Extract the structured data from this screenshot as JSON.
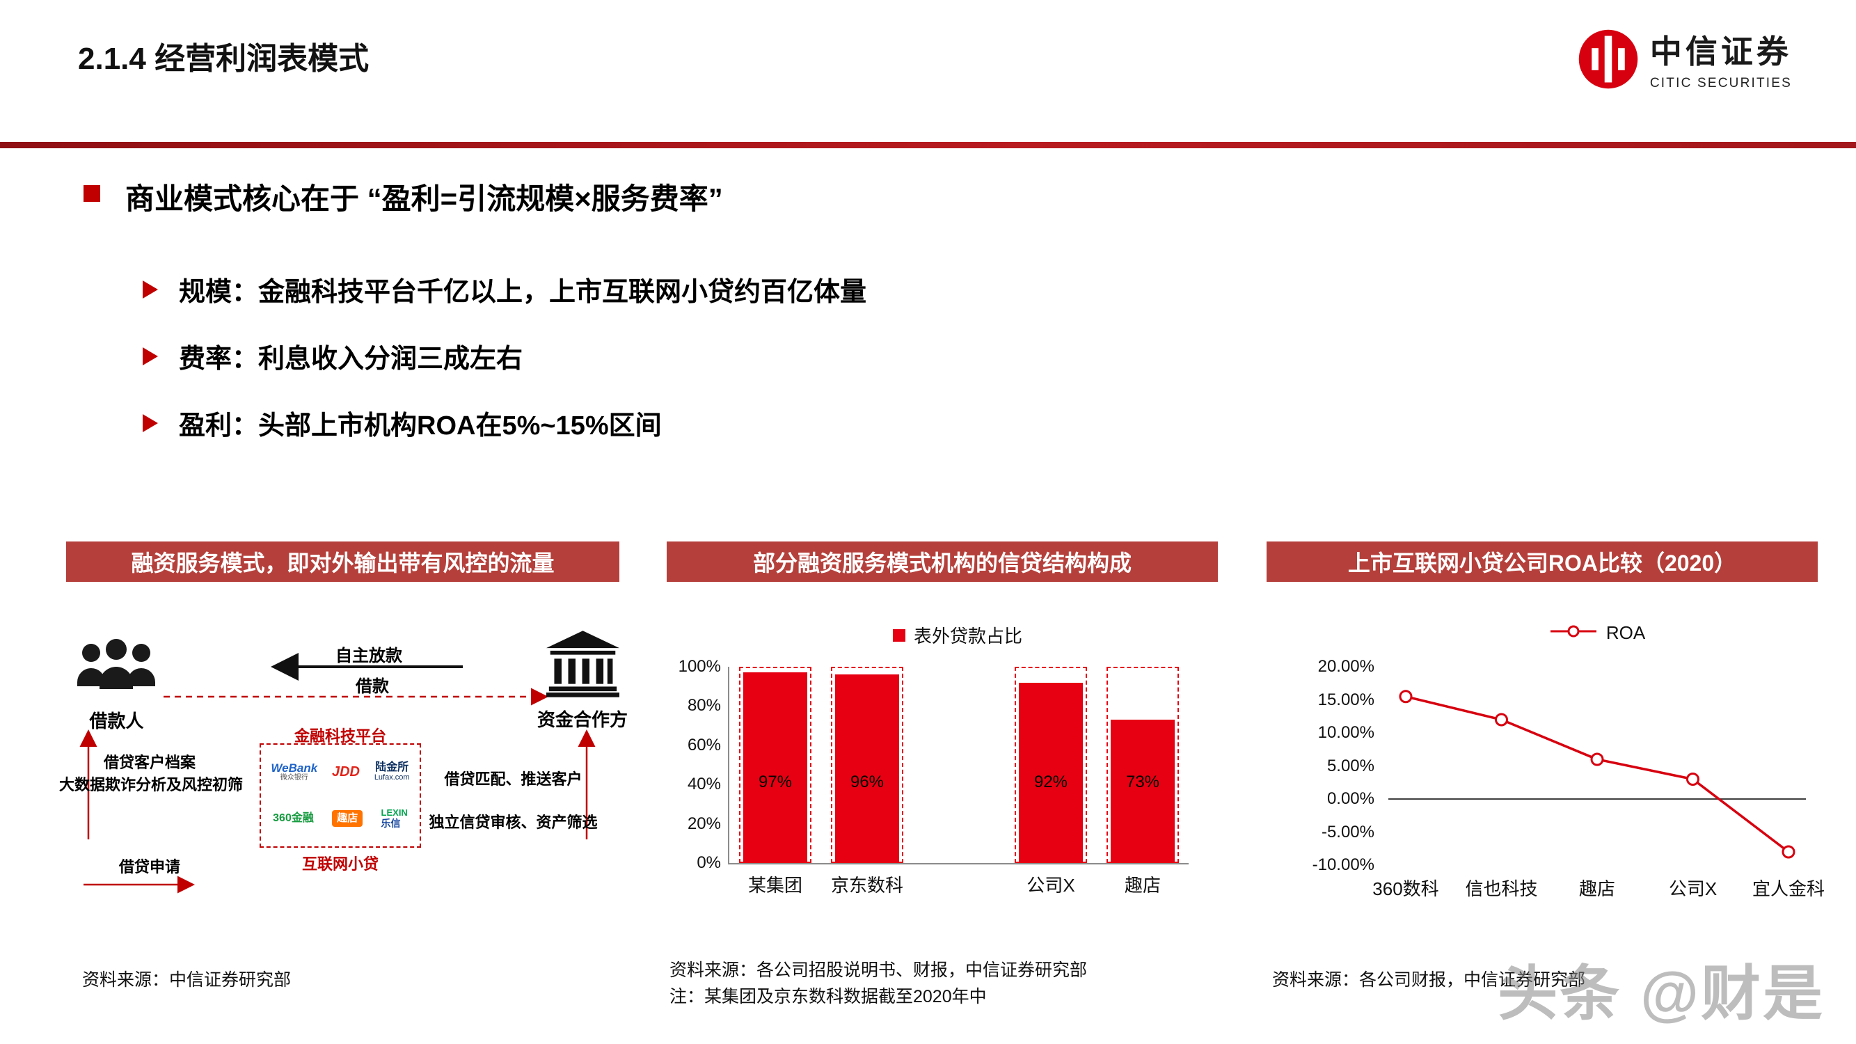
{
  "header": {
    "title": "2.1.4 经营利润表模式",
    "logo_cn": "中信证券",
    "logo_en": "CITIC SECURITIES"
  },
  "content": {
    "main_bullet": "商业模式核心在于 “盈利=引流规模×服务费率”",
    "sub_bullets": [
      "规模：金融科技平台千亿以上，上市互联网小贷约百亿体量",
      "费率：利息收入分润三成左右",
      "盈利：头部上市机构ROA在5%~15%区间"
    ]
  },
  "panel1": {
    "title": "融资服务模式，即对外输出带有风控的流量",
    "source": "资料来源：中信证券研究部",
    "diagram": {
      "borrower_label": "借款人",
      "funder_label": "资金合作方",
      "arrow_top_label": "自主放款",
      "arrow_mid_label": "借款",
      "left_text1": "借贷客户档案",
      "left_text2": "大数据欺诈分析及风控初筛",
      "left_text3": "借贷申请",
      "right_text1": "借贷匹配、推送客户",
      "right_text2": "独立信贷审核、资产筛选",
      "platform_top": "金融科技平台",
      "platform_bottom": "互联网小贷",
      "logos": {
        "webank_en": "WeBank",
        "webank_cn": "微众银行",
        "jdd": "JDD",
        "lufax_cn": "陆金所",
        "lufax_en": "Lufax.com",
        "qihoo": "360金融",
        "qudian": "趣店",
        "lexin_en": "LEXIN",
        "lexin_cn": "乐信"
      }
    }
  },
  "panel2": {
    "title": "部分融资服务模式机构的信贷结构构成",
    "source_line1": "资料来源：各公司招股说明书、财报，中信证券研究部",
    "source_line2": "注：某集团及京东数科数据截至2020年中"
  },
  "panel3": {
    "title": "上市互联网小贷公司ROA比较（2020）",
    "source": "资料来源：各公司财报，中信证券研究部"
  },
  "chart_data": [
    {
      "type": "bar",
      "title": "部分融资服务模式机构的信贷结构构成",
      "legend_label": "表外贷款占比",
      "legend_position": "top",
      "categories": [
        "某集团",
        "京东数科",
        "公司X",
        "趣店"
      ],
      "values": [
        97,
        96,
        92,
        73
      ],
      "value_labels": [
        "97%",
        "96%",
        "92%",
        "73%"
      ],
      "yticks": [
        "100%",
        "80%",
        "60%",
        "40%",
        "20%",
        "0%"
      ],
      "ylim": [
        0,
        100
      ],
      "xlabel": "",
      "ylabel": "",
      "grid": false,
      "bar_color": "#e60012",
      "outline_style": "dashed box from 0% to 100% around each bar",
      "layout": {
        "slots_total": 5,
        "slot_index": [
          0,
          1,
          3,
          4
        ],
        "bar_width_pct": 14
      }
    },
    {
      "type": "line",
      "title": "上市互联网小贷公司ROA比较（2020）",
      "legend_label": "ROA",
      "legend_position": "top",
      "categories": [
        "360数科",
        "信也科技",
        "趣店",
        "公司X",
        "宜人金科"
      ],
      "values": [
        15.5,
        12.0,
        6.0,
        3.0,
        -8.0
      ],
      "yticks": [
        "20.00%",
        "15.00%",
        "10.00%",
        "5.00%",
        "0.00%",
        "-5.00%",
        "-10.00%"
      ],
      "ylim": [
        -10,
        20
      ],
      "xlabel": "",
      "ylabel": "",
      "grid": false,
      "zero_line": true,
      "line_color": "#d7000f",
      "marker": "open-circle"
    }
  ],
  "watermark": "头条 @财是"
}
